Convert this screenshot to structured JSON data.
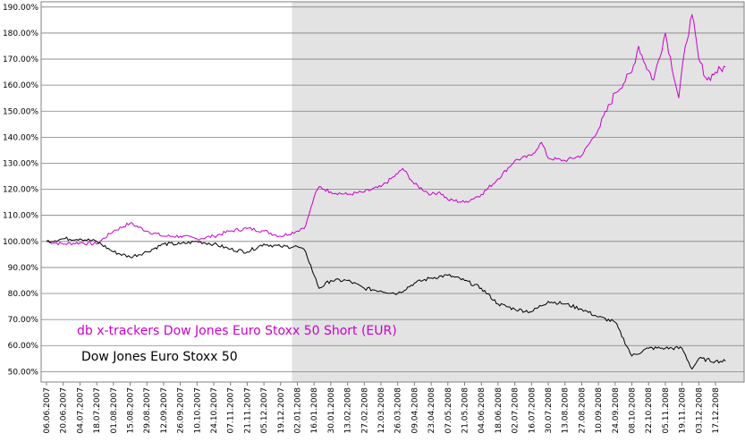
{
  "chart_data": {
    "type": "line",
    "y_ticks": [
      "190.00%",
      "180.00%",
      "170.00%",
      "160.00%",
      "150.00%",
      "140.00%",
      "130.00%",
      "120.00%",
      "110.00%",
      "100.00%",
      "90.00%",
      "80.00%",
      "70.00%",
      "60.00%",
      "50.00%"
    ],
    "ylim": [
      46,
      192
    ],
    "x_ticks": [
      "06.06.2007",
      "20.06.2007",
      "04.07.2007",
      "18.07.2007",
      "01.08.2007",
      "15.08.2007",
      "29.08.2007",
      "12.09.2007",
      "26.09.2007",
      "10.10.2007",
      "24.10.2007",
      "07.11.2007",
      "21.11.2007",
      "05.12.2007",
      "19.12.2007",
      "02.01.2008",
      "16.01.2008",
      "30.01.2008",
      "13.02.2008",
      "27.02.2008",
      "12.03.2008",
      "26.03.2008",
      "09.04.2008",
      "23.04.2008",
      "07.05.2008",
      "21.05.2008",
      "04.06.2008",
      "18.06.2008",
      "02.07.2008",
      "16.07.2008",
      "30.07.2008",
      "13.08.2008",
      "27.08.2008",
      "10.09.2008",
      "24.09.2008",
      "08.10.2008",
      "22.10.2008",
      "05.11.2008",
      "19.11.2008",
      "03.12.2008",
      "17.12.2008"
    ],
    "shaded_from_tick": "02.01.2008",
    "grid": true,
    "legend_placement": "bottom-left",
    "colors": {
      "shade": "#e3e3e3",
      "grid": "#7f7f7f"
    },
    "series": [
      {
        "name": "db x-trackers Dow Jones Euro Stoxx 50 Short (EUR)",
        "color": "#cc00cc",
        "points": [
          [
            0,
            100
          ],
          [
            1,
            99
          ],
          [
            2,
            99.5
          ],
          [
            3,
            99
          ],
          [
            4,
            104
          ],
          [
            5,
            107
          ],
          [
            6,
            104
          ],
          [
            7,
            102
          ],
          [
            8,
            102
          ],
          [
            9,
            101
          ],
          [
            10,
            102
          ],
          [
            11,
            104
          ],
          [
            12,
            105
          ],
          [
            13,
            104
          ],
          [
            14,
            102
          ],
          [
            15,
            104
          ],
          [
            15.5,
            106
          ],
          [
            16,
            117
          ],
          [
            16.3,
            121
          ],
          [
            17,
            119
          ],
          [
            18,
            118
          ],
          [
            19,
            119
          ],
          [
            20,
            121
          ],
          [
            21,
            126
          ],
          [
            21.3,
            128
          ],
          [
            22,
            122
          ],
          [
            23,
            118
          ],
          [
            23.5,
            119
          ],
          [
            24,
            116
          ],
          [
            25,
            115
          ],
          [
            26,
            118
          ],
          [
            27,
            124
          ],
          [
            28,
            131
          ],
          [
            29,
            133
          ],
          [
            29.6,
            138
          ],
          [
            30,
            132
          ],
          [
            31,
            131
          ],
          [
            32,
            133
          ],
          [
            33,
            143
          ],
          [
            34,
            157
          ],
          [
            35,
            165
          ],
          [
            35.4,
            175
          ],
          [
            35.8,
            168
          ],
          [
            36.3,
            162
          ],
          [
            37,
            180
          ],
          [
            37.8,
            155
          ],
          [
            38.2,
            175
          ],
          [
            38.6,
            187
          ],
          [
            39,
            170
          ],
          [
            39.5,
            162
          ],
          [
            40,
            165
          ],
          [
            40.6,
            167
          ]
        ]
      },
      {
        "name": "Dow Jones Euro Stoxx 50",
        "color": "#000000",
        "points": [
          [
            0,
            100
          ],
          [
            1,
            101
          ],
          [
            2,
            101
          ],
          [
            3,
            100
          ],
          [
            4,
            96
          ],
          [
            5,
            94
          ],
          [
            6,
            96
          ],
          [
            7,
            99
          ],
          [
            8,
            99
          ],
          [
            9,
            100
          ],
          [
            10,
            99
          ],
          [
            11,
            97
          ],
          [
            12,
            96
          ],
          [
            13,
            99
          ],
          [
            14,
            98
          ],
          [
            15,
            98
          ],
          [
            15.5,
            96
          ],
          [
            16,
            87
          ],
          [
            16.3,
            82
          ],
          [
            17,
            85
          ],
          [
            18,
            85
          ],
          [
            19,
            82
          ],
          [
            20,
            81
          ],
          [
            21,
            80
          ],
          [
            22,
            84
          ],
          [
            23,
            86
          ],
          [
            24,
            87
          ],
          [
            25,
            85
          ],
          [
            26,
            82
          ],
          [
            27,
            76
          ],
          [
            28,
            74
          ],
          [
            29,
            73
          ],
          [
            30,
            77
          ],
          [
            31,
            76
          ],
          [
            32,
            74
          ],
          [
            33,
            71
          ],
          [
            34,
            69
          ],
          [
            35,
            56
          ],
          [
            36,
            59
          ],
          [
            37,
            59
          ],
          [
            38,
            59
          ],
          [
            38.6,
            51
          ],
          [
            39,
            55
          ],
          [
            40,
            54
          ],
          [
            40.6,
            54
          ]
        ]
      }
    ]
  }
}
